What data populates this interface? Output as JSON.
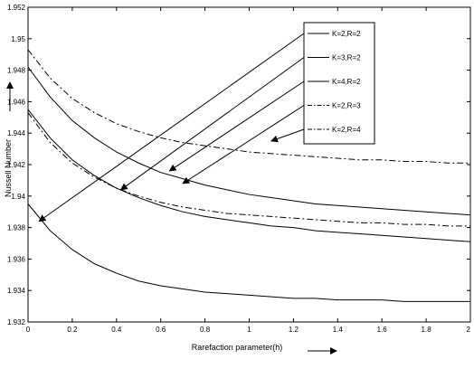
{
  "chart_data": {
    "type": "line",
    "title": "",
    "xlabel": "Rarefaction parameter(h)",
    "ylabel": "Nussell Number",
    "xlim": [
      0,
      2
    ],
    "ylim": [
      1.932,
      1.952
    ],
    "xticks": [
      "0",
      "0.2",
      "0.4",
      "0.6",
      "0.8",
      "1",
      "1.2",
      "1.4",
      "1.6",
      "1.8",
      "2"
    ],
    "yticks": [
      "1.932",
      "1.934",
      "1.936",
      "1.938",
      "1.94",
      "1.942",
      "1.944",
      "1.946",
      "1.948",
      "1.95",
      "1.952"
    ],
    "grid": false,
    "legend_position": "top-right",
    "series": [
      {
        "name": "K=2,R=2",
        "style": "solid",
        "x": [
          0,
          0.1,
          0.2,
          0.3,
          0.4,
          0.5,
          0.6,
          0.7,
          0.8,
          0.9,
          1.0,
          1.1,
          1.2,
          1.3,
          1.4,
          1.5,
          1.6,
          1.7,
          1.8,
          1.9,
          2.0
        ],
        "y": [
          1.9395,
          1.9378,
          1.9366,
          1.9357,
          1.9351,
          1.9346,
          1.9343,
          1.9341,
          1.9339,
          1.9338,
          1.9337,
          1.9336,
          1.9335,
          1.9335,
          1.9334,
          1.9334,
          1.9334,
          1.9333,
          1.9333,
          1.9333,
          1.9333
        ]
      },
      {
        "name": "K=3,R=2",
        "style": "solid",
        "x": [
          0,
          0.1,
          0.2,
          0.3,
          0.4,
          0.5,
          0.6,
          0.7,
          0.8,
          0.9,
          1.0,
          1.1,
          1.2,
          1.3,
          1.4,
          1.5,
          1.6,
          1.7,
          1.8,
          1.9,
          2.0
        ],
        "y": [
          1.9455,
          1.9437,
          1.9423,
          1.9413,
          1.9405,
          1.9399,
          1.9394,
          1.939,
          1.9387,
          1.9385,
          1.9383,
          1.9381,
          1.938,
          1.9378,
          1.9377,
          1.9376,
          1.9375,
          1.9374,
          1.9373,
          1.9372,
          1.9371
        ]
      },
      {
        "name": "K=4,R=2",
        "style": "solid",
        "x": [
          0,
          0.1,
          0.2,
          0.3,
          0.4,
          0.5,
          0.6,
          0.7,
          0.8,
          0.9,
          1.0,
          1.1,
          1.2,
          1.3,
          1.4,
          1.5,
          1.6,
          1.7,
          1.8,
          1.9,
          2.0
        ],
        "y": [
          1.9482,
          1.9463,
          1.9448,
          1.9437,
          1.9428,
          1.9421,
          1.9415,
          1.9411,
          1.9407,
          1.9404,
          1.9401,
          1.9399,
          1.9397,
          1.9395,
          1.9394,
          1.9393,
          1.9392,
          1.9391,
          1.939,
          1.9389,
          1.9388
        ]
      },
      {
        "name": "K=2,R=3",
        "style": "dashdot",
        "x": [
          0,
          0.1,
          0.2,
          0.3,
          0.4,
          0.5,
          0.6,
          0.7,
          0.8,
          0.9,
          1.0,
          1.1,
          1.2,
          1.3,
          1.4,
          1.5,
          1.6,
          1.7,
          1.8,
          1.9,
          2.0
        ],
        "y": [
          1.9453,
          1.9434,
          1.9421,
          1.9412,
          1.9405,
          1.94,
          1.9396,
          1.9393,
          1.9391,
          1.9389,
          1.9388,
          1.9387,
          1.9386,
          1.9385,
          1.9384,
          1.9383,
          1.9383,
          1.9382,
          1.9382,
          1.9381,
          1.9381
        ]
      },
      {
        "name": "K=2,R=4",
        "style": "dashdot",
        "x": [
          0,
          0.1,
          0.2,
          0.3,
          0.4,
          0.5,
          0.6,
          0.7,
          0.8,
          0.9,
          1.0,
          1.1,
          1.2,
          1.3,
          1.4,
          1.5,
          1.6,
          1.7,
          1.8,
          1.9,
          2.0
        ],
        "y": [
          1.9493,
          1.9475,
          1.9462,
          1.9453,
          1.9446,
          1.9441,
          1.9437,
          1.9434,
          1.9432,
          1.943,
          1.9428,
          1.9427,
          1.9426,
          1.9425,
          1.9424,
          1.9423,
          1.9423,
          1.9422,
          1.9422,
          1.9421,
          1.9421
        ]
      }
    ],
    "annotations": {
      "arrow_targets": [
        {
          "series": "K=2,R=2",
          "x": 0.05,
          "y": 1.9384
        },
        {
          "series": "K=3,R=2",
          "x": 0.42,
          "y": 1.9404
        },
        {
          "series": "K=4,R=2",
          "x": 0.64,
          "y": 1.9416
        },
        {
          "series": "K=2,R=3",
          "x": 0.7,
          "y": 1.9408
        },
        {
          "series": "K=2,R=4",
          "x": 1.1,
          "y": 1.9435
        }
      ]
    }
  }
}
